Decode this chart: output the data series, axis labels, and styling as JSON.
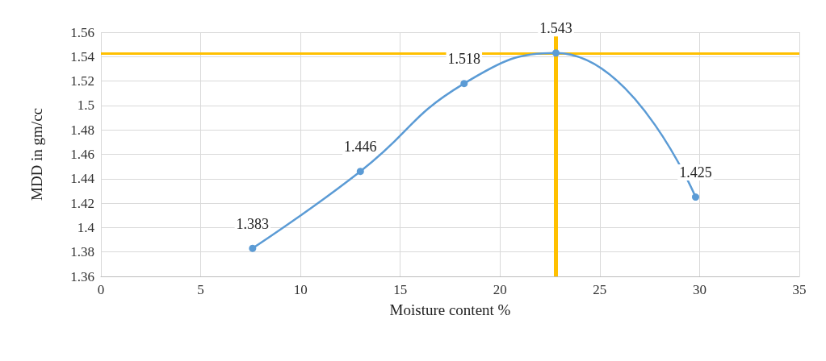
{
  "chart_data": {
    "type": "line",
    "xlabel": "Moisture content %",
    "ylabel": "MDD in gm/cc",
    "x": [
      7.6,
      13,
      18.2,
      22.8,
      29.8
    ],
    "series": [
      {
        "color": "#5b9bd5",
        "values": [
          1.383,
          1.446,
          1.518,
          1.543,
          1.425
        ]
      }
    ],
    "xlim": [
      0,
      35
    ],
    "xticks": [
      0,
      5,
      10,
      15,
      20,
      25,
      30,
      35
    ],
    "ylim": [
      1.36,
      1.56
    ],
    "yticks": [
      1.36,
      1.38,
      1.4,
      1.42,
      1.44,
      1.46,
      1.48,
      1.5,
      1.52,
      1.54,
      1.56
    ],
    "ref_lines": [
      {
        "axis": "y",
        "value": 1.543,
        "color": "#ffc000"
      },
      {
        "axis": "x",
        "value": 22.8,
        "color": "#ffc000"
      }
    ],
    "data_labels": true,
    "grid": true,
    "marker": "circle",
    "line_style": "solid"
  }
}
